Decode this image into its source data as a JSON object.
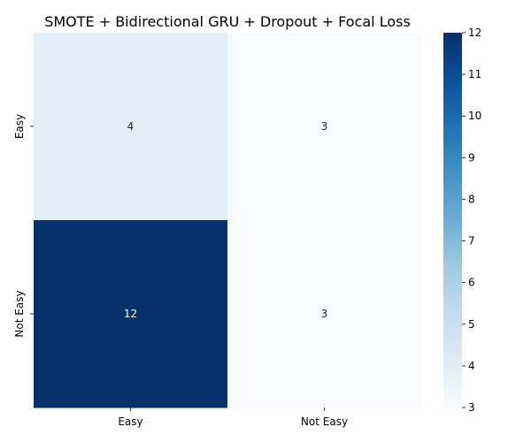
{
  "chart_data": {
    "type": "heatmap",
    "title": "SMOTE + Bidirectional GRU + Dropout + Focal Loss",
    "xlabel": "",
    "ylabel": "",
    "x_categories": [
      "Easy",
      "Not Easy"
    ],
    "y_categories": [
      "Easy",
      "Not Easy"
    ],
    "values": [
      [
        4,
        3
      ],
      [
        12,
        3
      ]
    ],
    "colormap": "Blues",
    "colorbar": {
      "range": [
        3,
        12
      ],
      "ticks": [
        "3",
        "4",
        "5",
        "6",
        "7",
        "8",
        "9",
        "10",
        "11",
        "12"
      ]
    },
    "annotations": true,
    "grid": false,
    "colors": {
      "low": "#f7fbff",
      "high": "#08306b",
      "text_dark": "#262626",
      "text_light": "#ffffff"
    }
  }
}
